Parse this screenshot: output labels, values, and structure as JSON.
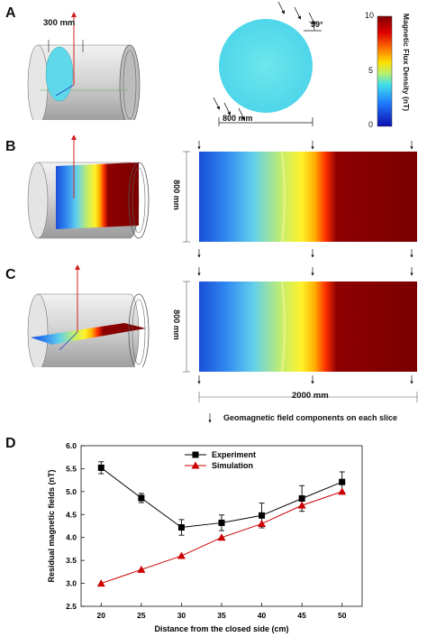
{
  "panels": {
    "a": {
      "letter": "A",
      "cylinder_dim": "300 mm",
      "disk_dim": "800 mm",
      "angle": "59°"
    },
    "b": {
      "letter": "B",
      "height_dim": "800 mm"
    },
    "c": {
      "letter": "C",
      "height_dim": "800 mm",
      "length_dim": "2000 mm"
    },
    "d": {
      "letter": "D"
    }
  },
  "colorbar": {
    "label": "Magnetic Flux Density (nT)",
    "ticks": [
      "10",
      "5",
      "0"
    ],
    "colors": [
      "#7f0000",
      "#ff1a00",
      "#ffb000",
      "#e8f030",
      "#30e8e0",
      "#3090ff",
      "#1010c0"
    ]
  },
  "legend_note": "Geomagnetic field components on each slice",
  "chart_data": {
    "type": "line",
    "x": [
      20,
      25,
      30,
      35,
      40,
      45,
      50
    ],
    "series": [
      {
        "name": "Experiment",
        "values": [
          5.52,
          4.86,
          4.22,
          4.32,
          4.48,
          4.85,
          5.21
        ],
        "err": [
          0.13,
          0.1,
          0.17,
          0.17,
          0.27,
          0.28,
          0.22
        ],
        "color": "#000000",
        "marker": "square"
      },
      {
        "name": "Simulation",
        "values": [
          3.0,
          3.3,
          3.6,
          4.0,
          4.3,
          4.7,
          5.0
        ],
        "color": "#cc0000",
        "marker": "triangle"
      }
    ],
    "xlabel": "Distance from the closed side (cm)",
    "ylabel": "Residual magnetic fields (nT)",
    "xlim": [
      17.5,
      52.5
    ],
    "ylim": [
      2.5,
      6.0
    ],
    "xticks": [
      "20",
      "25",
      "30",
      "35",
      "40",
      "45",
      "50"
    ],
    "yticks": [
      "2.5",
      "3.0",
      "3.5",
      "4.0",
      "4.5",
      "5.0",
      "5.5",
      "6.0"
    ],
    "legend_position": "top-center"
  }
}
